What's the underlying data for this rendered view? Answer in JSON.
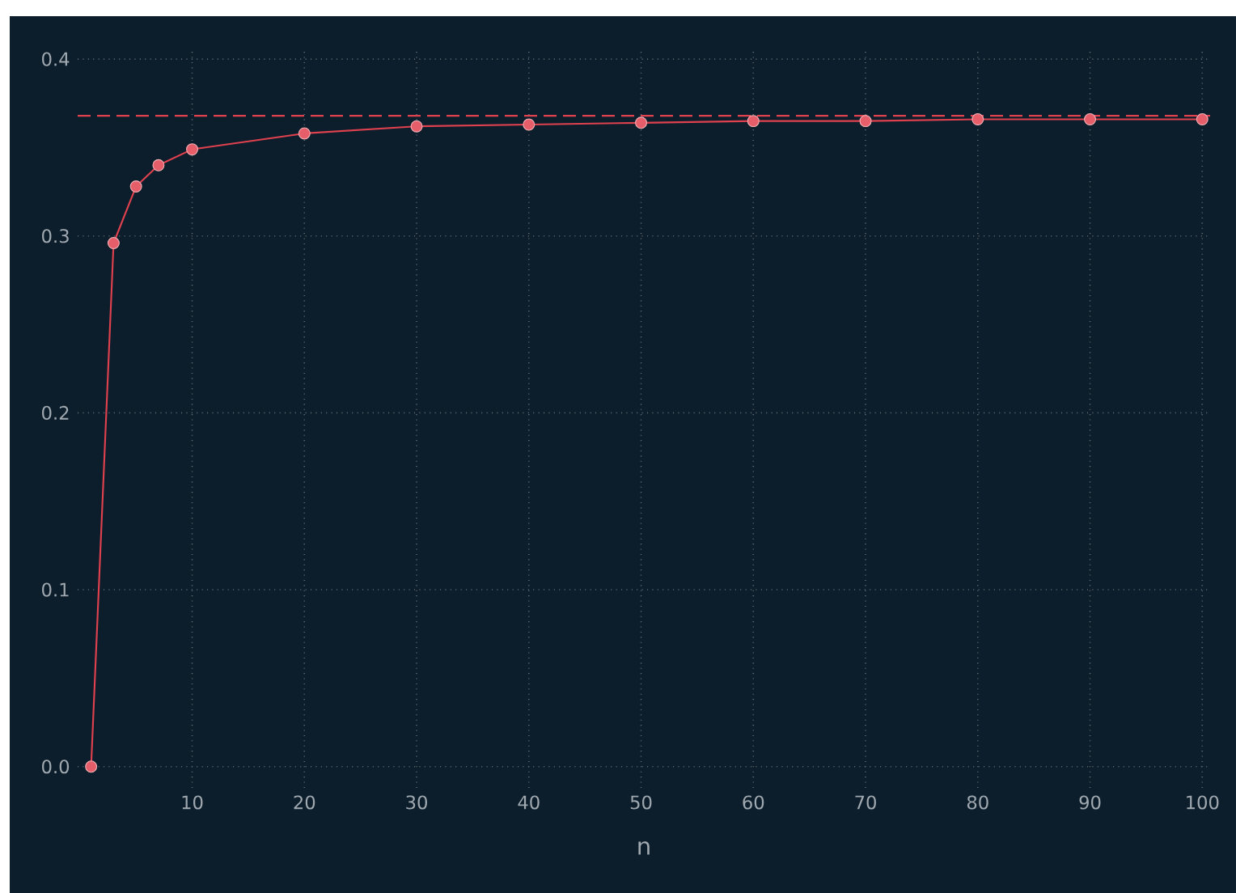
{
  "chart_data": {
    "type": "line",
    "xlabel": "n",
    "x": [
      1,
      3,
      5,
      7,
      10,
      20,
      30,
      40,
      50,
      60,
      70,
      80,
      90,
      100
    ],
    "series": [
      {
        "color": "#e0414f",
        "values": [
          0,
          0.296,
          0.328,
          0.34,
          0.349,
          0.358,
          0.362,
          0.363,
          0.364,
          0.365,
          0.365,
          0.366,
          0.366,
          0.366
        ]
      }
    ],
    "xlim": [
      -0.2,
      100.7
    ],
    "ylim": [
      -0.012,
      0.406
    ],
    "xticks": [
      10,
      20,
      30,
      40,
      50,
      60,
      70,
      80,
      90,
      100
    ],
    "yticks": [
      {
        "value": 0,
        "label": "0.0"
      },
      {
        "value": 0.1,
        "label": "0.1"
      },
      {
        "value": 0.2,
        "label": "0.2"
      },
      {
        "value": 0.3,
        "label": "0.3"
      },
      {
        "value": 0.4,
        "label": "0.4"
      }
    ],
    "ref_lines": [
      {
        "axis": "y",
        "value": 0.368,
        "color": "#e0414f",
        "line_style": "dashed"
      }
    ],
    "grid": true,
    "marker": "circle",
    "line_style": "solid"
  }
}
